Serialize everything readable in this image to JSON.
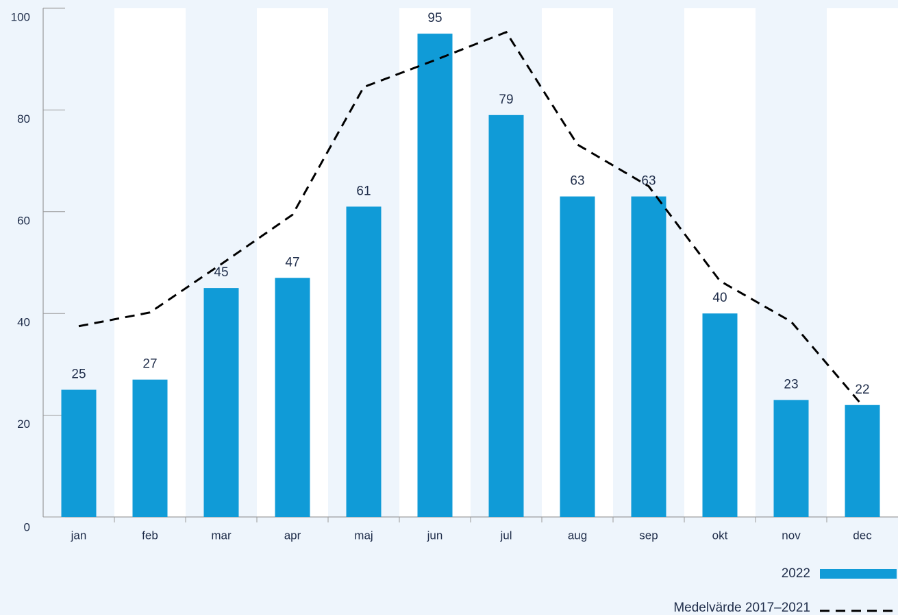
{
  "chart_data": {
    "type": "bar",
    "categories": [
      "jan",
      "feb",
      "mar",
      "apr",
      "maj",
      "jun",
      "jul",
      "aug",
      "sep",
      "okt",
      "nov",
      "dec"
    ],
    "series": [
      {
        "name": "2022",
        "type": "bar",
        "color": "#109bd7",
        "values": [
          25,
          27,
          45,
          47,
          61,
          95,
          79,
          63,
          63,
          40,
          23,
          22
        ]
      },
      {
        "name": "Medelvärde 2017–2021",
        "type": "line",
        "color": "#000000",
        "dashed": true,
        "values": [
          37.5,
          40.2,
          49.7,
          59.4,
          84.5,
          89.8,
          95.3,
          73.2,
          65,
          46.4,
          38.4,
          21.9
        ]
      }
    ],
    "ylim": [
      0,
      100
    ],
    "yticks": [
      0,
      20,
      40,
      60,
      80,
      100
    ],
    "legend": "bottom-right"
  }
}
